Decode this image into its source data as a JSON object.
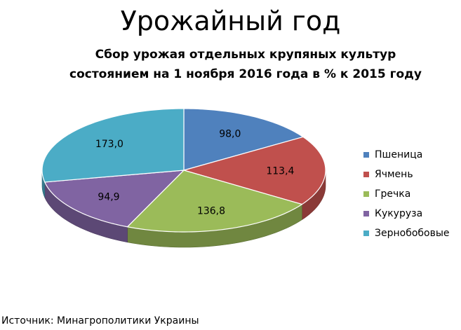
{
  "title": "Урожайный год",
  "subtitle": [
    "Сбор урожая отдельных крупяных культур",
    "состоянием на 1 ноября 2016 года в % к 2015 году"
  ],
  "source": "Источник: Минагрополитики Украины",
  "chart_data": {
    "type": "pie",
    "style": "3d",
    "categories": [
      "Пшеница",
      "Ячмень",
      "Гречка",
      "Кукуруза",
      "Зернобобовые"
    ],
    "values": [
      98.0,
      113.4,
      136.8,
      94.9,
      173.0
    ],
    "labels": [
      "98,0",
      "113,4",
      "136,8",
      "94,9",
      "173,0"
    ],
    "colors": [
      "#4F81BD",
      "#C0504D",
      "#9BBB59",
      "#8064A2",
      "#4BACC6"
    ],
    "legend": {
      "position": "right"
    }
  }
}
